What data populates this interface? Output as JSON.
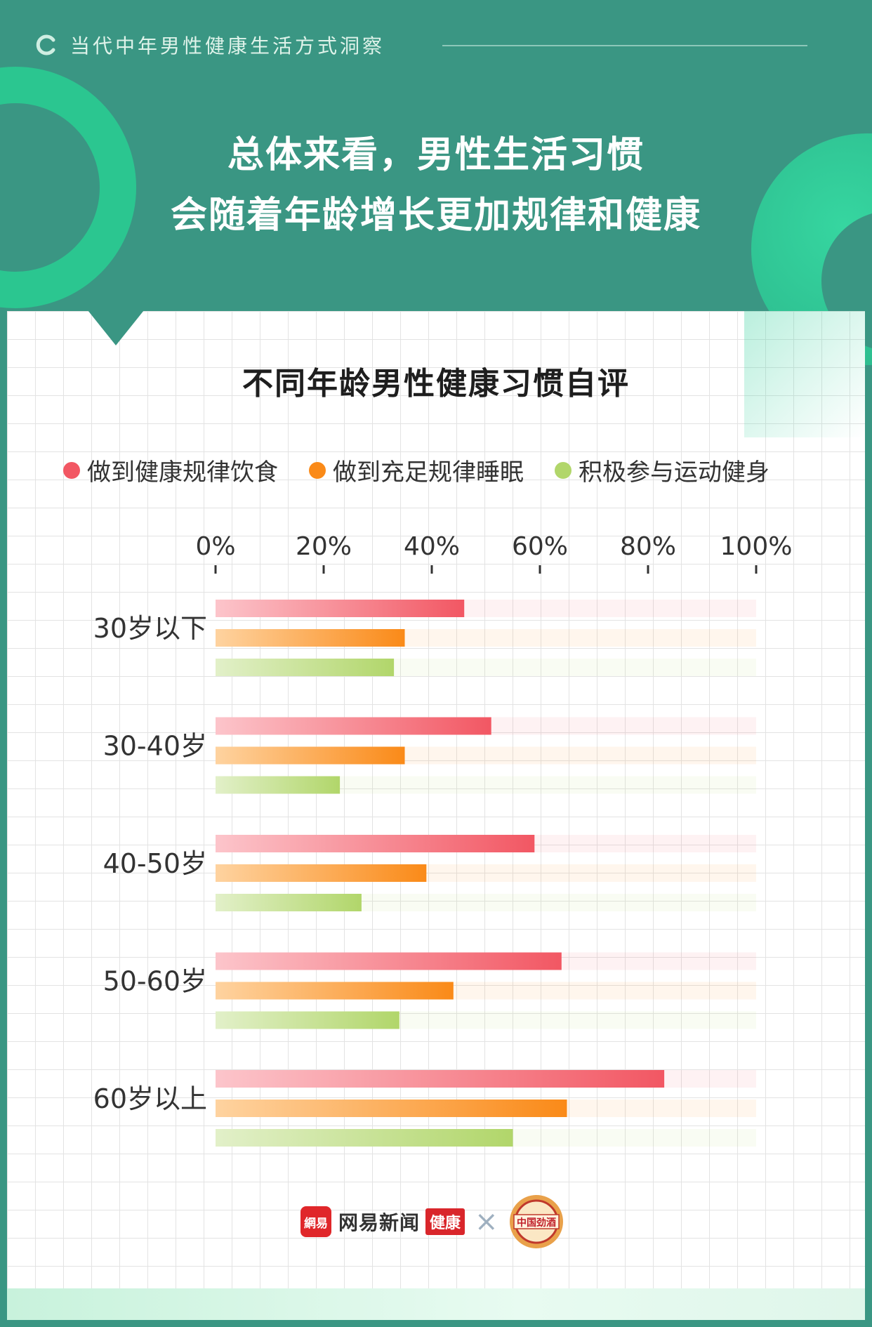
{
  "header": {
    "section_title": "当代中年男性健康生活方式洞察",
    "headline_line1": "总体来看，男性生活习惯",
    "headline_line2": "会随着年龄增长更加规律和健康"
  },
  "colors": {
    "background": "#3a9683",
    "accent_green": "#2bc690",
    "diet": "#f25763",
    "sleep": "#fa8a18",
    "exercise": "#b1d66a",
    "title_highlight": "#e8f54a"
  },
  "chart_data": {
    "type": "bar",
    "orientation": "horizontal",
    "title": "不同年龄男性健康习惯自评",
    "xlim": [
      0,
      100
    ],
    "ticks": [
      "0%",
      "20%",
      "40%",
      "60%",
      "80%",
      "100%"
    ],
    "tick_values": [
      0,
      20,
      40,
      60,
      80,
      100
    ],
    "categories": [
      "30岁以下",
      "30-40岁",
      "40-50岁",
      "50-60岁",
      "60岁以上"
    ],
    "series": [
      {
        "name": "做到健康规律饮食",
        "color": "#f25763",
        "values": [
          46,
          51,
          59,
          64,
          83
        ]
      },
      {
        "name": "做到充足规律睡眠",
        "color": "#fa8a18",
        "values": [
          35,
          35,
          39,
          44,
          65
        ]
      },
      {
        "name": "积极参与运动健身",
        "color": "#b1d66a",
        "values": [
          33,
          23,
          27,
          34,
          55
        ]
      }
    ],
    "legend_position": "top",
    "grid": true
  },
  "footer": {
    "netease_icon_text": "網易",
    "netease_text": "网易新闻",
    "health_badge": "健康",
    "times": "×",
    "partner": "中国劲酒"
  }
}
